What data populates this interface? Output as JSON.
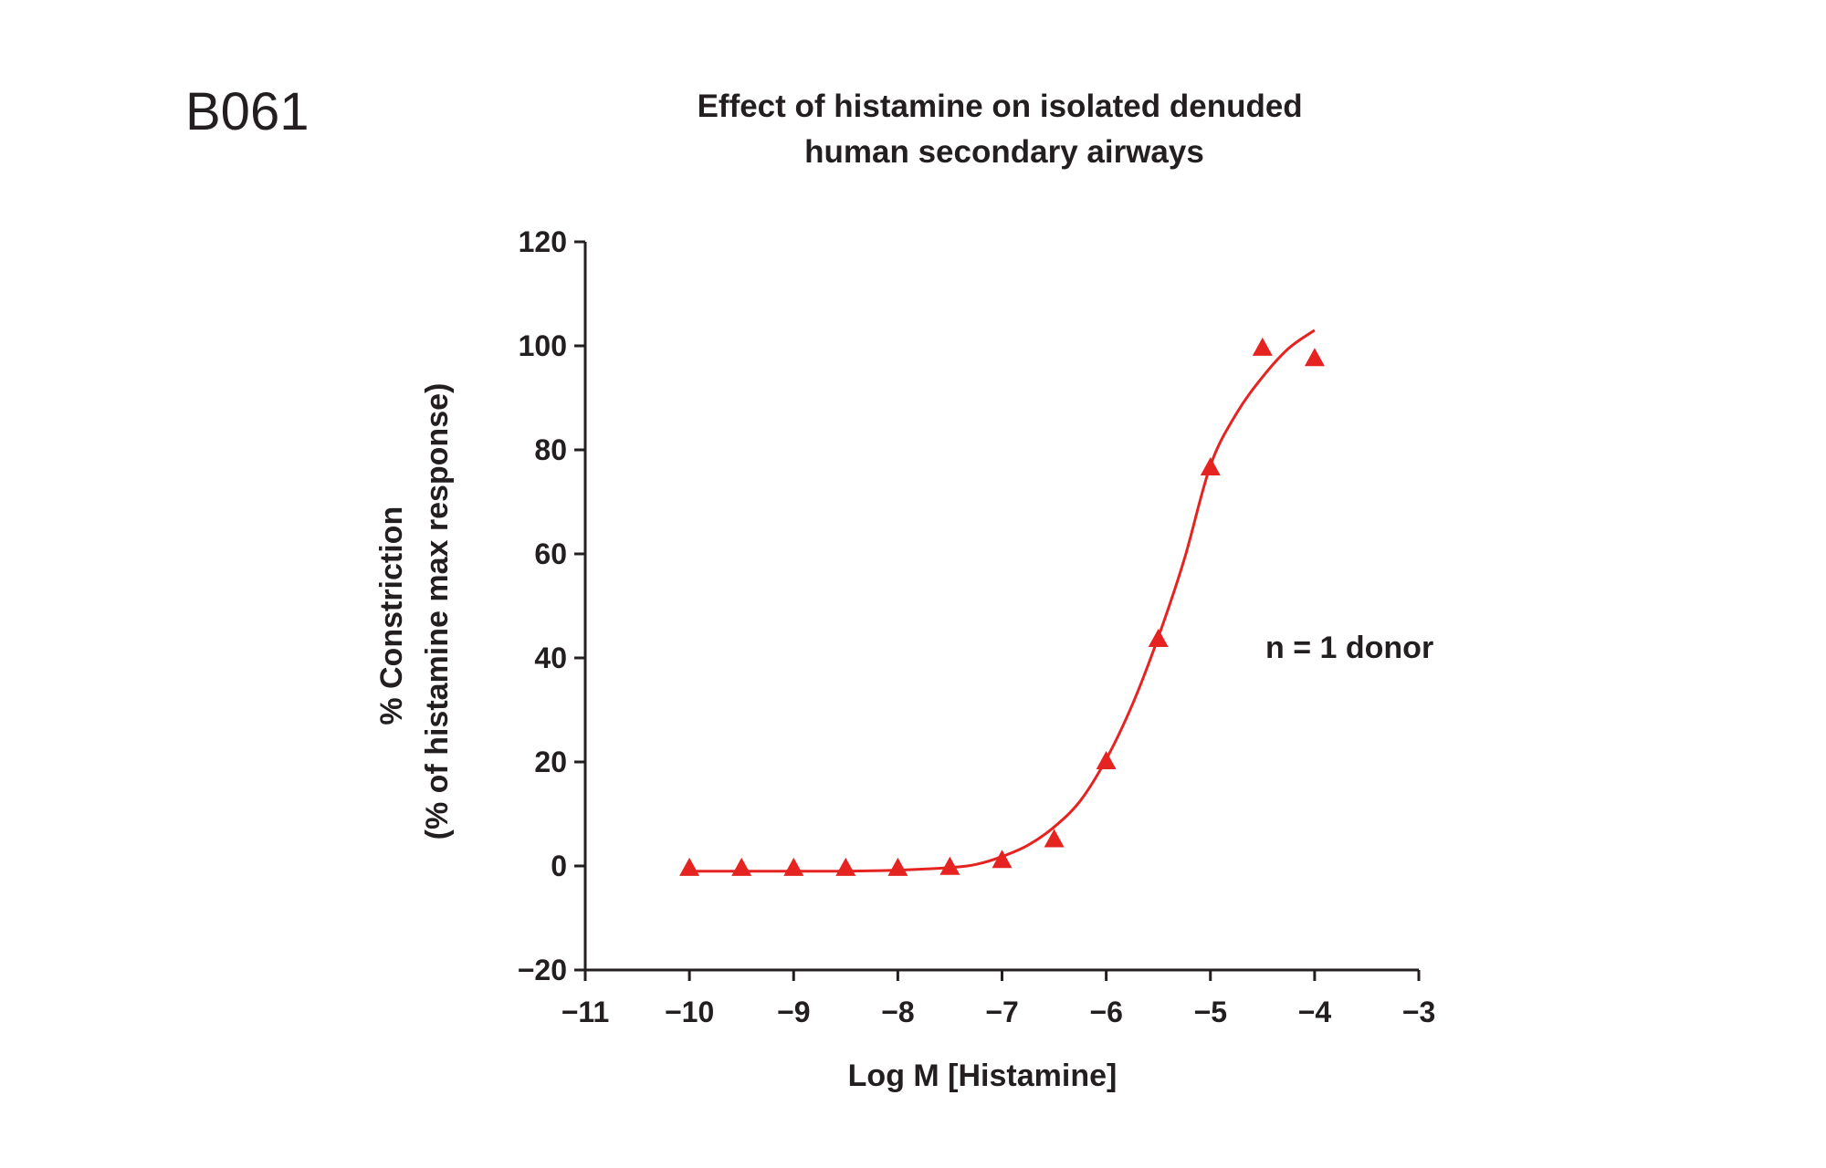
{
  "panel_label": "B061",
  "chart_data": {
    "type": "scatter",
    "title": [
      "Effect of histamine on isolated denuded",
      "human secondary airways"
    ],
    "xlabel": "Log M [Histamine]",
    "ylabel": [
      "% Constriction",
      "(% of histamine max response)"
    ],
    "xlim": [
      -11,
      -3
    ],
    "ylim": [
      -20,
      120
    ],
    "xticks": [
      -11,
      -10,
      -9,
      -8,
      -7,
      -6,
      -5,
      -4,
      -3
    ],
    "yticks": [
      -20,
      0,
      20,
      40,
      60,
      80,
      100,
      120
    ],
    "xtick_labels": [
      "−11",
      "−10",
      "−9",
      "−8",
      "−7",
      "−6",
      "−5",
      "−4",
      "−3"
    ],
    "ytick_labels": [
      "−20",
      "0",
      "20",
      "40",
      "60",
      "80",
      "100",
      "120"
    ],
    "grid": false,
    "annotation": "n = 1 donor",
    "series": [
      {
        "color": "#e52421",
        "marker": "triangle",
        "points": [
          {
            "x": -10.0,
            "y": -0.5
          },
          {
            "x": -9.5,
            "y": -0.5
          },
          {
            "x": -9.0,
            "y": -0.5
          },
          {
            "x": -8.5,
            "y": -0.5
          },
          {
            "x": -8.0,
            "y": -0.5
          },
          {
            "x": -7.5,
            "y": -0.3
          },
          {
            "x": -7.0,
            "y": 1.0
          },
          {
            "x": -6.5,
            "y": 5.0
          },
          {
            "x": -6.0,
            "y": 20.0
          },
          {
            "x": -5.5,
            "y": 43.5
          },
          {
            "x": -5.0,
            "y": 76.5
          },
          {
            "x": -4.5,
            "y": 99.5
          },
          {
            "x": -4.0,
            "y": 97.5
          }
        ],
        "fit_curve": [
          {
            "x": -10.0,
            "y": -1.0
          },
          {
            "x": -9.5,
            "y": -1.0
          },
          {
            "x": -9.0,
            "y": -1.0
          },
          {
            "x": -8.5,
            "y": -1.0
          },
          {
            "x": -8.0,
            "y": -0.8
          },
          {
            "x": -7.5,
            "y": -0.3
          },
          {
            "x": -7.25,
            "y": 0.3
          },
          {
            "x": -7.0,
            "y": 1.8
          },
          {
            "x": -6.75,
            "y": 4.0
          },
          {
            "x": -6.5,
            "y": 7.5
          },
          {
            "x": -6.25,
            "y": 12.5
          },
          {
            "x": -6.0,
            "y": 20.5
          },
          {
            "x": -5.75,
            "y": 31.0
          },
          {
            "x": -5.5,
            "y": 44.0
          },
          {
            "x": -5.25,
            "y": 59.0
          },
          {
            "x": -5.0,
            "y": 77.0
          },
          {
            "x": -4.75,
            "y": 87.0
          },
          {
            "x": -4.5,
            "y": 94.0
          },
          {
            "x": -4.25,
            "y": 99.5
          },
          {
            "x": -4.0,
            "y": 103.0
          }
        ]
      }
    ]
  }
}
